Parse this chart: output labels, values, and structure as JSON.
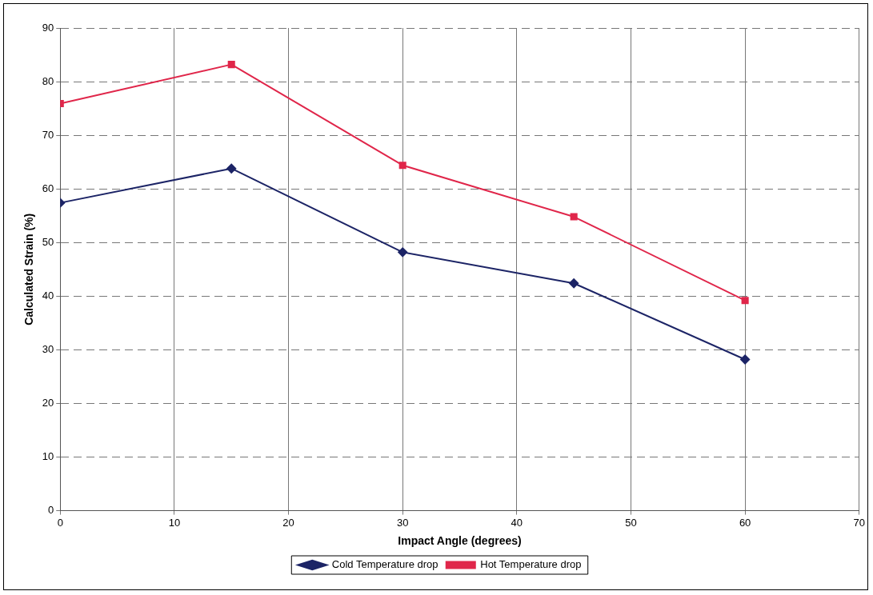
{
  "chart_data": {
    "type": "line",
    "xlabel": "Impact Angle (degrees)",
    "ylabel": "Calculated Strain (%)",
    "x": [
      0,
      15,
      30,
      45,
      60
    ],
    "series": [
      {
        "name": "Cold Temperature drop",
        "color": "#1c2466",
        "marker": "diamond",
        "values": [
          57.4,
          63.8,
          48.2,
          42.4,
          28.2
        ]
      },
      {
        "name": "Hot Temperature drop",
        "color": "#e0264a",
        "marker": "square",
        "values": [
          75.9,
          83.2,
          64.4,
          54.8,
          39.2
        ]
      }
    ],
    "xlim": [
      0,
      70
    ],
    "xticks": [
      0,
      10,
      20,
      30,
      40,
      50,
      60,
      70
    ],
    "ylim": [
      0,
      90
    ],
    "yticks": [
      0,
      10,
      20,
      30,
      40,
      50,
      60,
      70,
      80,
      90
    ],
    "grid": true,
    "legend": "bottom",
    "line_style": "solid"
  }
}
